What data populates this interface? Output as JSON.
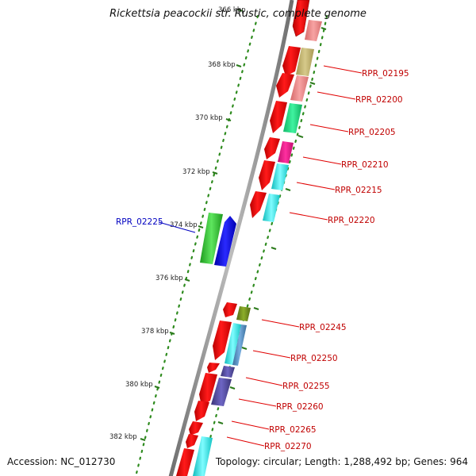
{
  "title": "Rickettsia peacockii str. Rustic, complete genome",
  "accession": "Accession: NC_012730",
  "summary": "Topology: circular; Length: 1,288,492 bp; Genes: 964",
  "colors": {
    "backbone": "#8a8a8a",
    "dots": "#2e7d1e",
    "tick": "#2a7a1a",
    "label_red": "#c00000",
    "label_blue": "#0000c0"
  },
  "kbp_ticks": [
    "366 kbp",
    "368 kbp",
    "370 kbp",
    "372 kbp",
    "374 kbp",
    "376 kbp",
    "378 kbp",
    "380 kbp",
    "382 kbp"
  ],
  "gene_labels": [
    {
      "name": "RPR_02195",
      "side": "right"
    },
    {
      "name": "RPR_02200",
      "side": "right"
    },
    {
      "name": "RPR_02205",
      "side": "right"
    },
    {
      "name": "RPR_02210",
      "side": "right"
    },
    {
      "name": "RPR_02215",
      "side": "right"
    },
    {
      "name": "RPR_02220",
      "side": "right"
    },
    {
      "name": "RPR_02225",
      "side": "left"
    },
    {
      "name": "RPR_02245",
      "side": "right"
    },
    {
      "name": "RPR_02250",
      "side": "right"
    },
    {
      "name": "RPR_02255",
      "side": "right"
    },
    {
      "name": "RPR_02260",
      "side": "right"
    },
    {
      "name": "RPR_02265",
      "side": "right"
    },
    {
      "name": "RPR_02270",
      "side": "right"
    }
  ]
}
